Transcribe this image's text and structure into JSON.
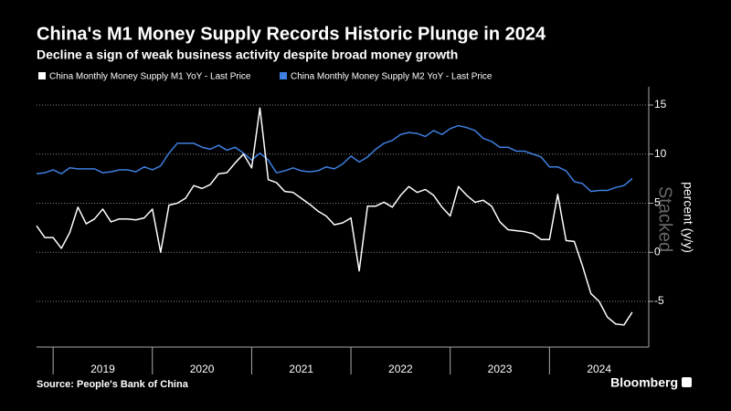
{
  "chart_data": {
    "type": "line",
    "title": "China's M1 Money Supply Records Historic Plunge in 2024",
    "subtitle": "Decline a sign of weak business activity despite broad money growth",
    "y_label": "percent (y/y)",
    "watermark": "Stacked",
    "source": "Source: People's Bank of China",
    "brand": "Bloomberg",
    "x": [
      2018.833,
      2018.917,
      2019.0,
      2019.083,
      2019.167,
      2019.25,
      2019.333,
      2019.417,
      2019.5,
      2019.583,
      2019.667,
      2019.75,
      2019.833,
      2019.917,
      2020.0,
      2020.083,
      2020.167,
      2020.25,
      2020.333,
      2020.417,
      2020.5,
      2020.583,
      2020.667,
      2020.75,
      2020.833,
      2020.917,
      2021.0,
      2021.083,
      2021.167,
      2021.25,
      2021.333,
      2021.417,
      2021.5,
      2021.583,
      2021.667,
      2021.75,
      2021.833,
      2021.917,
      2022.0,
      2022.083,
      2022.167,
      2022.25,
      2022.333,
      2022.417,
      2022.5,
      2022.583,
      2022.667,
      2022.75,
      2022.833,
      2022.917,
      2023.0,
      2023.083,
      2023.167,
      2023.25,
      2023.333,
      2023.417,
      2023.5,
      2023.583,
      2023.667,
      2023.75,
      2023.833,
      2023.917,
      2024.0,
      2024.083,
      2024.167,
      2024.25,
      2024.333,
      2024.417,
      2024.5,
      2024.583,
      2024.667,
      2024.75,
      2024.833
    ],
    "series": [
      {
        "name": "China Monthly Money Supply M1 YoY - Last Price",
        "color": "#ffffff",
        "values": [
          2.7,
          1.5,
          1.5,
          0.4,
          2.0,
          4.6,
          2.9,
          3.4,
          4.4,
          3.1,
          3.4,
          3.4,
          3.3,
          3.5,
          4.4,
          0.0,
          4.8,
          5.0,
          5.5,
          6.8,
          6.5,
          6.9,
          8.0,
          8.1,
          9.1,
          10.0,
          8.6,
          14.7,
          7.4,
          7.1,
          6.2,
          6.1,
          5.5,
          4.9,
          4.2,
          3.7,
          2.8,
          3.0,
          3.5,
          -1.9,
          4.7,
          4.7,
          5.1,
          4.6,
          5.8,
          6.7,
          6.1,
          6.4,
          5.8,
          4.6,
          3.7,
          6.7,
          5.8,
          5.1,
          5.3,
          4.7,
          3.1,
          2.3,
          2.2,
          2.1,
          1.9,
          1.3,
          1.3,
          5.9,
          1.2,
          1.1,
          -1.4,
          -4.2,
          -5.0,
          -6.6,
          -7.3,
          -7.4,
          -6.1
        ]
      },
      {
        "name": "China Monthly Money Supply M2 YoY - Last Price",
        "color": "#3f7fe0",
        "values": [
          8.0,
          8.1,
          8.4,
          8.0,
          8.6,
          8.5,
          8.5,
          8.5,
          8.1,
          8.2,
          8.4,
          8.4,
          8.2,
          8.7,
          8.4,
          8.8,
          10.1,
          11.1,
          11.1,
          11.1,
          10.7,
          10.5,
          10.9,
          10.4,
          10.7,
          10.1,
          9.4,
          10.1,
          9.4,
          8.1,
          8.3,
          8.6,
          8.3,
          8.2,
          8.3,
          8.7,
          8.5,
          9.0,
          9.8,
          9.2,
          9.7,
          10.5,
          11.1,
          11.4,
          12.0,
          12.2,
          12.1,
          11.8,
          12.4,
          12.0,
          12.6,
          12.9,
          12.7,
          12.4,
          11.6,
          11.3,
          10.7,
          10.7,
          10.3,
          10.3,
          10.0,
          9.7,
          8.7,
          8.7,
          8.3,
          7.2,
          7.0,
          6.2,
          6.3,
          6.3,
          6.6,
          6.8,
          7.5
        ]
      }
    ],
    "xlim": [
      2018.833,
      2025.0
    ],
    "xticks": [
      {
        "value": 2019.5,
        "label": "2019"
      },
      {
        "value": 2020.5,
        "label": "2020"
      },
      {
        "value": 2021.5,
        "label": "2021"
      },
      {
        "value": 2022.5,
        "label": "2022"
      },
      {
        "value": 2023.5,
        "label": "2023"
      },
      {
        "value": 2024.5,
        "label": "2024"
      }
    ],
    "ylim": [
      -9.65,
      16.86
    ],
    "yticks": [
      -5,
      0,
      5,
      10,
      15
    ],
    "grid": true
  }
}
